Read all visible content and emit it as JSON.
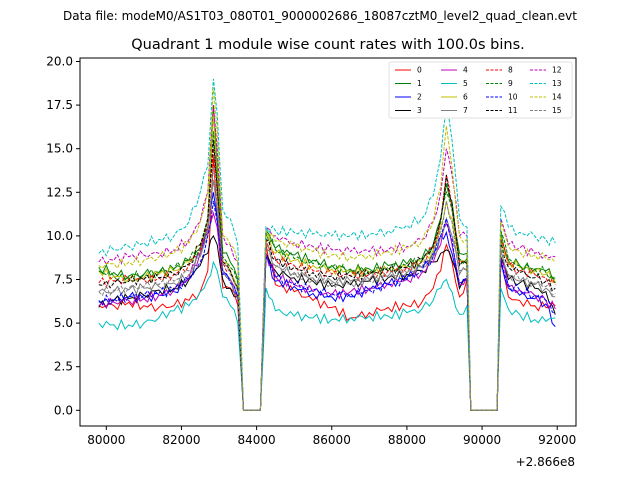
{
  "supertitle": "Data file: modeM0/AS1T03_080T01_9000002686_18087cztM0_level2_quad_clean.evt",
  "chart_data": {
    "type": "line",
    "title": "Quadrant 1 module wise count rates with 100.0s bins.",
    "xlabel": "",
    "ylabel": "",
    "x_offset_label": "+2.866e8",
    "xlim": [
      79300,
      92500
    ],
    "ylim": [
      -0.9,
      20.2
    ],
    "x_ticks": [
      80000,
      82000,
      84000,
      86000,
      88000,
      90000,
      92000
    ],
    "x_tick_labels": [
      "80000",
      "82000",
      "84000",
      "86000",
      "88000",
      "90000",
      "92000"
    ],
    "y_ticks": [
      0.0,
      2.5,
      5.0,
      7.5,
      10.0,
      12.5,
      15.0,
      17.5,
      20.0
    ],
    "y_tick_labels": [
      "0.0",
      "2.5",
      "5.0",
      "7.5",
      "10.0",
      "12.5",
      "15.0",
      "17.5",
      "20.0"
    ],
    "legend_position": "top-right",
    "x": [
      79800,
      80200,
      80600,
      81000,
      81400,
      81800,
      82200,
      82500,
      82700,
      82850,
      82950,
      83100,
      83300,
      83500,
      83650,
      83800,
      84100,
      84250,
      84500,
      85000,
      85500,
      86000,
      86500,
      87000,
      87500,
      88000,
      88400,
      88700,
      88900,
      89050,
      89200,
      89400,
      89600,
      89700,
      90100,
      90400,
      90500,
      90700,
      91000,
      91400,
      91700,
      91950
    ],
    "series": [
      {
        "name": "0",
        "color": "#ff0000",
        "dash": "solid",
        "values": [
          6.0,
          6.0,
          6.2,
          6.0,
          5.9,
          6.0,
          6.3,
          6.8,
          8.0,
          14.5,
          11.0,
          7.0,
          7.0,
          6.0,
          0.0,
          0.0,
          0.0,
          9.5,
          7.2,
          6.8,
          6.3,
          5.9,
          5.3,
          5.6,
          5.9,
          6.0,
          6.2,
          7.0,
          8.0,
          9.5,
          8.5,
          6.5,
          7.5,
          0.0,
          0.0,
          0.0,
          8.5,
          6.5,
          6.3,
          6.0,
          5.9,
          6.0
        ]
      },
      {
        "name": "1",
        "color": "#008000",
        "dash": "solid",
        "values": [
          8.2,
          7.9,
          7.7,
          7.8,
          7.9,
          8.1,
          8.6,
          9.3,
          11.0,
          17.5,
          14.0,
          9.0,
          8.5,
          7.5,
          0.0,
          0.0,
          0.0,
          10.3,
          9.3,
          8.9,
          8.6,
          8.3,
          8.1,
          8.1,
          8.3,
          8.4,
          8.7,
          9.5,
          11.0,
          13.0,
          12.0,
          9.0,
          9.0,
          0.0,
          0.0,
          0.0,
          10.2,
          8.6,
          8.3,
          8.1,
          8.0,
          7.6
        ]
      },
      {
        "name": "2",
        "color": "#0000ff",
        "dash": "solid",
        "values": [
          6.2,
          6.3,
          6.5,
          6.4,
          6.6,
          6.8,
          7.6,
          9.0,
          10.5,
          12.5,
          11.0,
          8.0,
          7.5,
          6.5,
          0.0,
          0.0,
          0.0,
          8.8,
          7.4,
          7.1,
          6.7,
          6.5,
          6.5,
          6.9,
          7.2,
          7.6,
          8.2,
          9.0,
          10.0,
          10.2,
          9.0,
          7.0,
          7.5,
          0.0,
          0.0,
          0.0,
          8.6,
          7.0,
          6.6,
          6.4,
          6.1,
          4.8
        ]
      },
      {
        "name": "3",
        "color": "#000000",
        "dash": "solid",
        "values": [
          5.9,
          6.3,
          6.4,
          6.6,
          6.9,
          7.0,
          7.5,
          8.3,
          9.0,
          10.0,
          9.5,
          7.5,
          7.0,
          6.5,
          0.0,
          0.0,
          0.0,
          9.0,
          8.0,
          7.6,
          7.4,
          7.1,
          7.2,
          7.4,
          7.6,
          7.8,
          8.0,
          8.5,
          9.0,
          9.2,
          8.6,
          7.0,
          7.5,
          0.0,
          0.0,
          0.0,
          8.8,
          7.5,
          7.3,
          7.0,
          6.8,
          5.5
        ]
      },
      {
        "name": "4",
        "color": "#bf00bf",
        "dash": "solid",
        "values": [
          6.0,
          6.2,
          6.3,
          6.4,
          6.6,
          6.9,
          7.6,
          9.0,
          10.2,
          11.3,
          10.5,
          8.0,
          7.5,
          6.5,
          0.0,
          0.0,
          0.0,
          9.0,
          7.7,
          7.2,
          6.8,
          6.6,
          6.8,
          7.0,
          7.3,
          7.5,
          7.9,
          8.5,
          9.5,
          10.7,
          9.5,
          7.2,
          7.6,
          0.0,
          0.0,
          0.0,
          8.7,
          7.1,
          6.9,
          6.6,
          6.3,
          5.8
        ]
      },
      {
        "name": "5",
        "color": "#00bfbf",
        "dash": "solid",
        "values": [
          5.0,
          4.9,
          4.9,
          5.0,
          5.3,
          5.7,
          6.0,
          6.8,
          7.5,
          8.5,
          8.0,
          6.5,
          6.0,
          5.0,
          0.0,
          0.0,
          0.0,
          7.0,
          5.7,
          5.4,
          5.3,
          5.2,
          5.3,
          5.4,
          5.4,
          5.6,
          5.8,
          6.3,
          7.0,
          7.5,
          6.8,
          5.5,
          6.0,
          0.0,
          0.0,
          0.0,
          7.0,
          5.8,
          5.5,
          5.2,
          5.1,
          5.3
        ]
      },
      {
        "name": "6",
        "color": "#bfbf00",
        "dash": "solid",
        "values": [
          8.0,
          7.7,
          7.5,
          7.6,
          7.8,
          8.0,
          8.5,
          9.5,
          11.0,
          17.0,
          13.5,
          8.5,
          8.0,
          7.0,
          0.0,
          0.0,
          0.0,
          10.0,
          9.0,
          8.6,
          8.3,
          8.1,
          8.0,
          7.9,
          8.0,
          8.2,
          8.5,
          9.2,
          10.5,
          12.0,
          11.0,
          8.5,
          8.5,
          0.0,
          0.0,
          0.0,
          10.0,
          8.5,
          8.2,
          8.0,
          7.8,
          7.5
        ]
      },
      {
        "name": "7",
        "color": "#808080",
        "dash": "solid",
        "values": [
          6.8,
          6.8,
          6.9,
          7.0,
          7.1,
          7.3,
          7.8,
          8.8,
          10.0,
          13.2,
          11.5,
          8.0,
          7.5,
          6.5,
          0.0,
          0.0,
          0.0,
          9.5,
          8.3,
          7.9,
          7.6,
          7.4,
          7.4,
          7.5,
          7.7,
          7.9,
          8.2,
          8.8,
          10.0,
          11.0,
          10.0,
          7.8,
          8.0,
          0.0,
          0.0,
          0.0,
          9.2,
          7.7,
          7.4,
          7.2,
          7.0,
          6.5
        ]
      },
      {
        "name": "8",
        "color": "#ff0000",
        "dash": "dashed",
        "values": [
          7.3,
          7.4,
          7.5,
          7.5,
          7.6,
          7.8,
          8.3,
          9.2,
          10.5,
          15.0,
          12.5,
          8.5,
          8.0,
          7.0,
          0.0,
          0.0,
          0.0,
          9.8,
          8.7,
          8.3,
          8.0,
          7.8,
          7.7,
          7.8,
          8.0,
          8.2,
          8.5,
          9.3,
          10.8,
          13.5,
          11.5,
          8.5,
          8.5,
          0.0,
          0.0,
          0.0,
          9.8,
          8.3,
          8.0,
          7.8,
          7.6,
          7.2
        ]
      },
      {
        "name": "9",
        "color": "#008000",
        "dash": "dashed",
        "values": [
          8.0,
          7.7,
          7.6,
          7.8,
          7.9,
          8.1,
          8.6,
          9.4,
          11.0,
          16.0,
          13.0,
          8.8,
          8.2,
          7.3,
          0.0,
          0.0,
          0.0,
          10.2,
          9.2,
          8.7,
          8.4,
          8.2,
          8.0,
          8.0,
          8.2,
          8.3,
          8.6,
          9.4,
          10.8,
          12.5,
          11.5,
          8.7,
          8.7,
          0.0,
          0.0,
          0.0,
          10.3,
          8.7,
          8.3,
          8.1,
          7.9,
          7.3
        ]
      },
      {
        "name": "10",
        "color": "#0000ff",
        "dash": "dashed",
        "values": [
          6.3,
          6.4,
          6.5,
          6.6,
          6.7,
          6.9,
          7.5,
          8.5,
          10.0,
          12.0,
          10.8,
          7.8,
          7.3,
          6.5,
          0.0,
          0.0,
          0.0,
          8.8,
          7.6,
          7.2,
          6.9,
          6.7,
          6.7,
          6.9,
          7.2,
          7.5,
          8.0,
          8.8,
          10.0,
          11.0,
          9.8,
          7.3,
          7.7,
          0.0,
          0.0,
          0.0,
          8.7,
          7.2,
          6.9,
          6.6,
          6.3,
          5.5
        ]
      },
      {
        "name": "11",
        "color": "#000000",
        "dash": "dashed",
        "values": [
          7.2,
          7.3,
          7.4,
          7.5,
          7.6,
          7.8,
          8.4,
          9.5,
          11.0,
          15.5,
          12.8,
          8.5,
          8.0,
          7.0,
          0.0,
          0.0,
          0.0,
          9.8,
          8.6,
          8.2,
          7.9,
          7.7,
          7.7,
          7.8,
          8.0,
          8.2,
          8.6,
          9.5,
          11.0,
          13.5,
          11.8,
          8.3,
          8.4,
          0.0,
          0.0,
          0.0,
          9.7,
          8.2,
          7.9,
          7.6,
          7.4,
          7.0
        ]
      },
      {
        "name": "12",
        "color": "#bf00bf",
        "dash": "dashed",
        "values": [
          8.5,
          8.6,
          8.8,
          8.9,
          9.0,
          9.2,
          9.8,
          10.8,
          12.5,
          17.5,
          15.0,
          10.0,
          9.5,
          8.5,
          0.0,
          0.0,
          0.0,
          10.5,
          10.0,
          9.6,
          9.4,
          9.2,
          9.1,
          9.1,
          9.2,
          9.4,
          9.8,
          10.8,
          12.5,
          15.0,
          13.5,
          10.0,
          10.0,
          0.0,
          0.0,
          0.0,
          11.0,
          9.5,
          9.3,
          9.0,
          8.9,
          8.8
        ]
      },
      {
        "name": "13",
        "color": "#00bfbf",
        "dash": "dashed",
        "values": [
          9.0,
          9.2,
          9.4,
          9.6,
          9.8,
          10.0,
          10.8,
          12.5,
          14.0,
          19.0,
          17.0,
          11.5,
          11.0,
          9.5,
          0.0,
          0.0,
          0.0,
          10.5,
          10.3,
          10.2,
          10.1,
          10.0,
          10.0,
          10.1,
          10.3,
          10.6,
          11.0,
          12.3,
          14.5,
          17.3,
          15.5,
          11.0,
          10.5,
          0.0,
          0.0,
          0.0,
          11.7,
          10.5,
          10.2,
          10.0,
          9.8,
          9.6
        ]
      },
      {
        "name": "14",
        "color": "#bfbf00",
        "dash": "dashed",
        "values": [
          8.3,
          8.4,
          8.5,
          8.6,
          8.8,
          9.0,
          9.6,
          10.8,
          12.5,
          18.5,
          16.0,
          10.0,
          9.5,
          8.5,
          0.0,
          0.0,
          0.0,
          10.3,
          9.7,
          9.4,
          9.1,
          8.9,
          8.8,
          8.9,
          9.1,
          9.3,
          9.7,
          10.8,
          12.8,
          16.3,
          14.0,
          10.0,
          9.8,
          0.0,
          0.0,
          0.0,
          10.8,
          9.4,
          9.1,
          8.9,
          8.7,
          8.5
        ]
      },
      {
        "name": "15",
        "color": "#808080",
        "dash": "dashed",
        "values": [
          6.8,
          6.9,
          7.0,
          7.1,
          7.2,
          7.4,
          8.0,
          9.0,
          10.5,
          14.0,
          12.0,
          8.3,
          7.8,
          6.8,
          0.0,
          0.0,
          0.0,
          9.3,
          8.2,
          7.8,
          7.5,
          7.3,
          7.3,
          7.4,
          7.6,
          7.9,
          8.2,
          9.0,
          10.3,
          12.0,
          10.8,
          8.0,
          8.1,
          0.0,
          0.0,
          0.0,
          9.3,
          7.8,
          7.5,
          7.3,
          7.1,
          6.7
        ]
      }
    ]
  }
}
